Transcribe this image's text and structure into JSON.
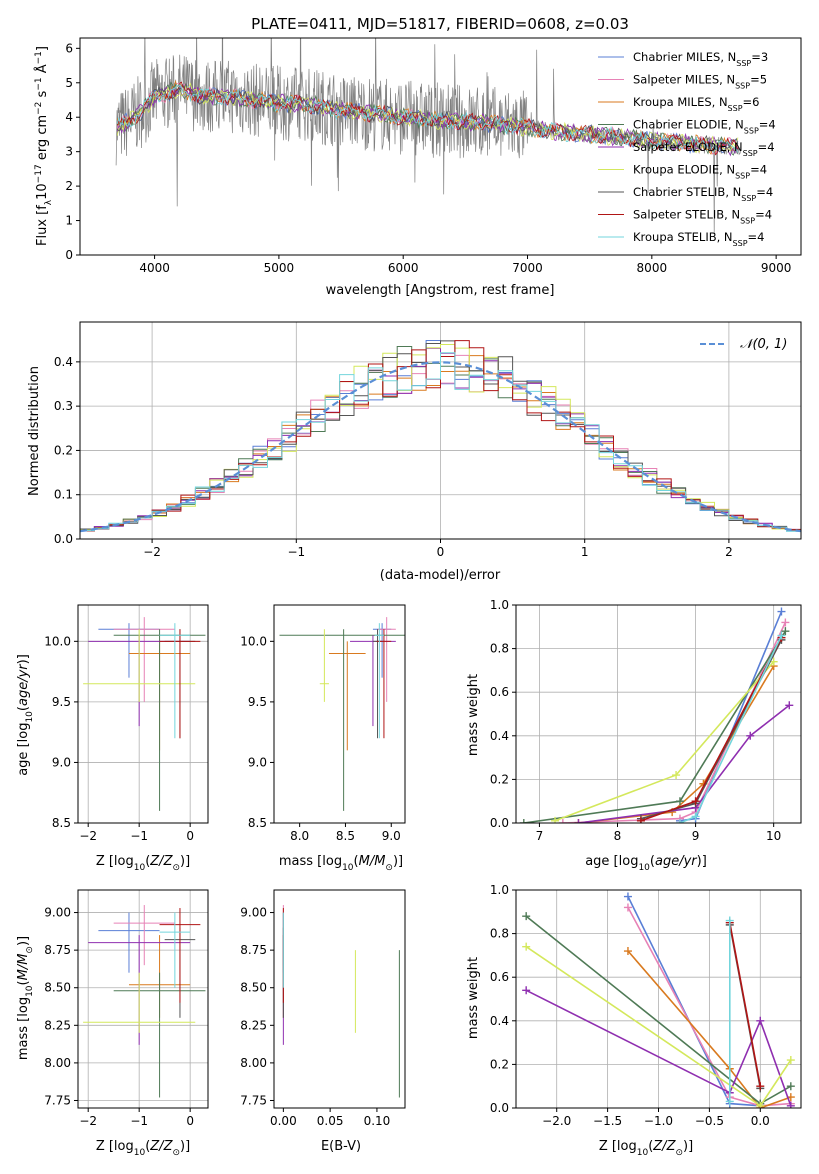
{
  "colors": {
    "Chabrier MILES": "#5a7fd6",
    "Salpeter MILES": "#e782b6",
    "Kroupa MILES": "#d97a1f",
    "Chabrier ELODIE": "#4f7a56",
    "Salpeter ELODIE": "#8f2fb0",
    "Kroupa ELODIE": "#d4e85c",
    "Chabrier STELIB": "#555555",
    "Salpeter STELIB": "#b01515",
    "Kroupa STELIB": "#73d5dc"
  },
  "chart_data": [
    {
      "type": "line",
      "title": "PLATE=0411, MJD=51817, FIBERID=0608, z=0.03",
      "xlabel": "wavelength [Angstrom, rest frame]",
      "ylabel": "Flux [fλ 10⁻¹⁷ erg cm⁻² s⁻¹ Å⁻¹]",
      "xlim": [
        3400,
        9200
      ],
      "ylim": [
        0,
        6.3
      ],
      "xticks": [
        4000,
        5000,
        6000,
        7000,
        8000,
        9000
      ],
      "yticks": [
        0,
        1,
        2,
        3,
        4,
        5,
        6
      ],
      "legend_position": "top-right",
      "legend": [
        {
          "model": "Chabrier MILES",
          "nssp": "3"
        },
        {
          "model": "Salpeter MILES",
          "nssp": "5"
        },
        {
          "model": "Kroupa MILES",
          "nssp": "6"
        },
        {
          "model": "Chabrier ELODIE",
          "nssp": "4"
        },
        {
          "model": "Salpeter ELODIE",
          "nssp": "4"
        },
        {
          "model": "Kroupa ELODIE",
          "nssp": "4"
        },
        {
          "model": "Chabrier STELIB",
          "nssp": "4"
        },
        {
          "model": "Salpeter STELIB",
          "nssp": "4"
        },
        {
          "model": "Kroupa STELIB",
          "nssp": "4"
        }
      ],
      "continuum": {
        "wavelength": [
          3700,
          3800,
          3900,
          4000,
          4200,
          4400,
          4600,
          4800,
          5000,
          5200,
          5500,
          5800,
          6000,
          6300,
          6600,
          6900,
          7200,
          7500,
          7800,
          8100,
          8400,
          8700
        ],
        "flux": [
          3.7,
          3.9,
          4.2,
          4.6,
          4.8,
          4.6,
          4.6,
          4.5,
          4.4,
          4.4,
          4.2,
          4.1,
          4.0,
          3.9,
          3.85,
          3.75,
          3.6,
          3.5,
          3.4,
          3.3,
          3.2,
          3.15
        ]
      }
    },
    {
      "type": "line",
      "xlabel": "(data-model)/error",
      "ylabel": "Normed distribution",
      "xlim": [
        -2.5,
        2.5
      ],
      "ylim": [
        0,
        0.49
      ],
      "xticks": [
        -2,
        -1,
        0,
        1,
        2
      ],
      "yticks": [
        0.0,
        0.1,
        0.2,
        0.3,
        0.4
      ],
      "legend_position": "top-right",
      "reference_label": "𝒩(0, 1)",
      "bin_width": 0.1
    },
    {
      "type": "scatter",
      "xlabel": "Z [log10(Z/Z⊙)]",
      "ylabel": "age [log10(age/yr)]",
      "xlim": [
        -2.2,
        0.35
      ],
      "ylim": [
        8.5,
        10.3
      ],
      "xticks": [
        -2,
        -1,
        0
      ],
      "yticks": [
        8.5,
        9.0,
        9.5,
        10.0
      ],
      "series": [
        {
          "model": "Chabrier MILES",
          "x": -1.2,
          "x_err": 0.6,
          "y": 10.1,
          "y_lo": 9.7,
          "y_hi": 10.15
        },
        {
          "model": "Salpeter MILES",
          "x": -0.9,
          "x_err": 0.6,
          "y": 10.1,
          "y_lo": 9.5,
          "y_hi": 10.2
        },
        {
          "model": "Kroupa MILES",
          "x": -0.6,
          "x_err": 0.6,
          "y": 9.9,
          "y_lo": 9.1,
          "y_hi": 10.0
        },
        {
          "model": "Chabrier ELODIE",
          "x": -0.6,
          "x_err": 0.9,
          "y": 10.05,
          "y_lo": 8.6,
          "y_hi": 10.1
        },
        {
          "model": "Salpeter ELODIE",
          "x": -1.0,
          "x_err": 1.0,
          "y": 10.0,
          "y_lo": 9.3,
          "y_hi": 10.05
        },
        {
          "model": "Kroupa ELODIE",
          "x": -1.0,
          "x_err": 1.1,
          "y": 9.65,
          "y_lo": 9.5,
          "y_hi": 10.1
        },
        {
          "model": "Chabrier STELIB",
          "x": -0.2,
          "x_err": 0.3,
          "y": 10.0,
          "y_lo": 9.2,
          "y_hi": 10.1
        },
        {
          "model": "Salpeter STELIB",
          "x": -0.2,
          "x_err": 0.4,
          "y": 10.0,
          "y_lo": 9.2,
          "y_hi": 10.1
        },
        {
          "model": "Kroupa STELIB",
          "x": -0.3,
          "x_err": 0.3,
          "y": 10.05,
          "y_lo": 9.2,
          "y_hi": 10.15
        }
      ]
    },
    {
      "type": "scatter",
      "xlabel": "mass [log10(M/M⊙)]",
      "ylabel": "",
      "xlim": [
        7.72,
        9.15
      ],
      "ylim": [
        8.5,
        10.3
      ],
      "xticks": [
        8.0,
        8.5,
        9.0
      ],
      "yticks": [
        8.5,
        9.0,
        9.5,
        10.0
      ],
      "series": [
        {
          "model": "Chabrier MILES",
          "x": 8.9,
          "x_err": 0.1,
          "y": 10.1,
          "y_lo": 9.7,
          "y_hi": 10.15
        },
        {
          "model": "Salpeter MILES",
          "x": 8.95,
          "x_err": 0.1,
          "y": 10.1,
          "y_lo": 9.5,
          "y_hi": 10.2
        },
        {
          "model": "Kroupa MILES",
          "x": 8.52,
          "x_err": 0.2,
          "y": 9.9,
          "y_lo": 9.1,
          "y_hi": 10.0
        },
        {
          "model": "Chabrier ELODIE",
          "x": 8.48,
          "x_err": 0.7,
          "y": 10.05,
          "y_lo": 8.6,
          "y_hi": 10.1
        },
        {
          "model": "Salpeter ELODIE",
          "x": 8.8,
          "x_err": 0.25,
          "y": 10.0,
          "y_lo": 9.3,
          "y_hi": 10.05
        },
        {
          "model": "Kroupa ELODIE",
          "x": 8.27,
          "x_err": 0.05,
          "y": 9.65,
          "y_lo": 9.5,
          "y_hi": 10.1
        },
        {
          "model": "Chabrier STELIB",
          "x": 8.85,
          "x_err": 0.05,
          "y": 10.0,
          "y_lo": 9.2,
          "y_hi": 10.1
        },
        {
          "model": "Salpeter STELIB",
          "x": 8.92,
          "x_err": 0.08,
          "y": 10.0,
          "y_lo": 9.2,
          "y_hi": 10.1
        },
        {
          "model": "Kroupa STELIB",
          "x": 8.87,
          "x_err": 0.05,
          "y": 10.05,
          "y_lo": 9.2,
          "y_hi": 10.15
        }
      ]
    },
    {
      "type": "line",
      "xlabel": "age  [log10(age/yr)]",
      "ylabel": "mass weight",
      "xlim": [
        6.7,
        10.35
      ],
      "ylim": [
        0,
        1.0
      ],
      "xticks": [
        7,
        8,
        9,
        10
      ],
      "yticks": [
        0.0,
        0.2,
        0.4,
        0.6,
        0.8,
        1.0
      ],
      "series": [
        {
          "model": "Chabrier MILES",
          "x": [
            8.8,
            9.0,
            10.1
          ],
          "y": [
            0.01,
            0.02,
            0.97
          ]
        },
        {
          "model": "Salpeter MILES",
          "x": [
            7.3,
            8.8,
            9.0,
            10.15
          ],
          "y": [
            0.0,
            0.02,
            0.05,
            0.92
          ]
        },
        {
          "model": "Kroupa MILES",
          "x": [
            7.5,
            8.7,
            9.1,
            10.0
          ],
          "y": [
            0.0,
            0.05,
            0.18,
            0.72
          ]
        },
        {
          "model": "Chabrier ELODIE",
          "x": [
            6.8,
            8.8,
            10.15
          ],
          "y": [
            0.0,
            0.1,
            0.88
          ]
        },
        {
          "model": "Salpeter ELODIE",
          "x": [
            7.5,
            9.0,
            9.7,
            10.2
          ],
          "y": [
            0.0,
            0.07,
            0.4,
            0.54
          ]
        },
        {
          "model": "Kroupa ELODIE",
          "x": [
            7.2,
            8.75,
            10.0
          ],
          "y": [
            0.01,
            0.22,
            0.74
          ]
        },
        {
          "model": "Chabrier STELIB",
          "x": [
            8.3,
            9.0,
            10.1
          ],
          "y": [
            0.02,
            0.09,
            0.84
          ]
        },
        {
          "model": "Salpeter STELIB",
          "x": [
            8.3,
            9.0,
            10.1
          ],
          "y": [
            0.01,
            0.1,
            0.85
          ]
        },
        {
          "model": "Kroupa STELIB",
          "x": [
            8.8,
            9.0,
            10.1
          ],
          "y": [
            0.0,
            0.03,
            0.86
          ]
        }
      ]
    },
    {
      "type": "scatter",
      "xlabel": "Z [log10(Z/Z⊙)]",
      "ylabel": "mass [log10(M/M⊙)]",
      "xlim": [
        -2.2,
        0.35
      ],
      "ylim": [
        7.7,
        9.15
      ],
      "xticks": [
        -2,
        -1,
        0
      ],
      "yticks": [
        7.75,
        8.0,
        8.25,
        8.5,
        8.75,
        9.0
      ],
      "series": [
        {
          "model": "Chabrier MILES",
          "x": -1.2,
          "x_err": 0.6,
          "y": 8.88,
          "y_lo": 8.6,
          "y_hi": 9.0
        },
        {
          "model": "Salpeter MILES",
          "x": -0.9,
          "x_err": 0.6,
          "y": 8.93,
          "y_lo": 8.65,
          "y_hi": 9.05
        },
        {
          "model": "Kroupa MILES",
          "x": -0.6,
          "x_err": 0.6,
          "y": 8.52,
          "y_lo": 8.3,
          "y_hi": 8.85
        },
        {
          "model": "Chabrier ELODIE",
          "x": -0.6,
          "x_err": 0.9,
          "y": 8.48,
          "y_lo": 7.77,
          "y_hi": 8.6
        },
        {
          "model": "Salpeter ELODIE",
          "x": -1.0,
          "x_err": 1.0,
          "y": 8.8,
          "y_lo": 8.12,
          "y_hi": 8.85
        },
        {
          "model": "Kroupa ELODIE",
          "x": -1.0,
          "x_err": 1.1,
          "y": 8.27,
          "y_lo": 8.2,
          "y_hi": 8.6
        },
        {
          "model": "Chabrier STELIB",
          "x": -0.2,
          "x_err": 0.3,
          "y": 8.82,
          "y_lo": 8.3,
          "y_hi": 8.9
        },
        {
          "model": "Salpeter STELIB",
          "x": -0.2,
          "x_err": 0.4,
          "y": 8.92,
          "y_lo": 8.4,
          "y_hi": 9.03
        },
        {
          "model": "Kroupa STELIB",
          "x": -0.3,
          "x_err": 0.3,
          "y": 8.87,
          "y_lo": 8.5,
          "y_hi": 9.0
        }
      ]
    },
    {
      "type": "scatter",
      "xlabel": "E(B-V)",
      "ylabel": "",
      "xlim": [
        -0.01,
        0.13
      ],
      "ylim": [
        7.7,
        9.15
      ],
      "xticks": [
        0.0,
        0.05,
        0.1
      ],
      "yticks": [
        7.75,
        8.0,
        8.25,
        8.5,
        8.75,
        9.0
      ],
      "series": [
        {
          "model": "Chabrier MILES",
          "x": 0.0,
          "y": 8.88,
          "y_lo": 8.6,
          "y_hi": 9.0
        },
        {
          "model": "Salpeter MILES",
          "x": 0.0,
          "y": 8.93,
          "y_lo": 8.65,
          "y_hi": 9.05
        },
        {
          "model": "Kroupa MILES",
          "x": 0.0,
          "y": 8.52,
          "y_lo": 8.3,
          "y_hi": 8.85
        },
        {
          "model": "Chabrier ELODIE",
          "x": 0.124,
          "y": 8.48,
          "y_lo": 7.77,
          "y_hi": 8.75
        },
        {
          "model": "Salpeter ELODIE",
          "x": 0.0,
          "y": 8.8,
          "y_lo": 8.12,
          "y_hi": 8.85
        },
        {
          "model": "Kroupa ELODIE",
          "x": 0.077,
          "y": 8.27,
          "y_lo": 8.2,
          "y_hi": 8.75
        },
        {
          "model": "Chabrier STELIB",
          "x": 0.0,
          "y": 8.82,
          "y_lo": 8.3,
          "y_hi": 8.9
        },
        {
          "model": "Salpeter STELIB",
          "x": 0.0,
          "y": 8.92,
          "y_lo": 8.4,
          "y_hi": 9.03
        },
        {
          "model": "Kroupa STELIB",
          "x": 0.0,
          "y": 8.87,
          "y_lo": 8.5,
          "y_hi": 9.0
        }
      ]
    },
    {
      "type": "line",
      "xlabel": "Z [log10(Z/Z⊙)]",
      "ylabel": "mass weight",
      "xlim": [
        -2.4,
        0.4
      ],
      "ylim": [
        0,
        1.0
      ],
      "xticks": [
        -2.0,
        -1.5,
        -1.0,
        -0.5,
        0.0
      ],
      "yticks": [
        0.0,
        0.2,
        0.4,
        0.6,
        0.8,
        1.0
      ],
      "series": [
        {
          "model": "Chabrier MILES",
          "x": [
            -1.3,
            -0.3,
            0.0
          ],
          "y": [
            0.97,
            0.02,
            0.01
          ]
        },
        {
          "model": "Salpeter MILES",
          "x": [
            -1.3,
            -0.3,
            0.0,
            0.3
          ],
          "y": [
            0.92,
            0.05,
            0.01,
            0.02
          ]
        },
        {
          "model": "Kroupa MILES",
          "x": [
            -1.3,
            -0.3,
            0.0,
            0.3
          ],
          "y": [
            0.72,
            0.18,
            0.0,
            0.05
          ]
        },
        {
          "model": "Chabrier ELODIE",
          "x": [
            -2.3,
            0.0,
            0.3
          ],
          "y": [
            0.88,
            0.02,
            0.1
          ]
        },
        {
          "model": "Salpeter ELODIE",
          "x": [
            -2.3,
            -0.3,
            0.0,
            0.3
          ],
          "y": [
            0.54,
            0.07,
            0.4,
            0.01
          ]
        },
        {
          "model": "Kroupa ELODIE",
          "x": [
            -2.3,
            0.0,
            0.3
          ],
          "y": [
            0.74,
            0.01,
            0.22
          ]
        },
        {
          "model": "Chabrier STELIB",
          "x": [
            -0.3,
            0.0
          ],
          "y": [
            0.84,
            0.09
          ]
        },
        {
          "model": "Salpeter STELIB",
          "x": [
            -0.3,
            0.0
          ],
          "y": [
            0.85,
            0.1
          ]
        },
        {
          "model": "Kroupa STELIB",
          "x": [
            -0.3,
            -0.3
          ],
          "y": [
            0.86,
            0.03
          ]
        }
      ]
    }
  ]
}
